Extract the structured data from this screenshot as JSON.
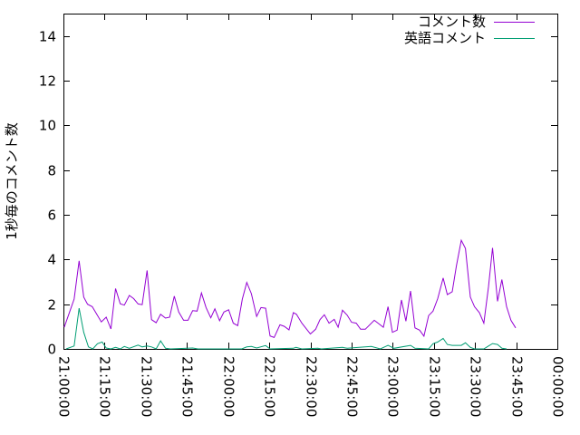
{
  "chart_data": {
    "type": "line",
    "title": "",
    "xlabel": "",
    "ylabel": "1秒毎のコメント数",
    "xlim": [
      "21:00:00",
      "00:00:00"
    ],
    "ylim": [
      0,
      15
    ],
    "x_ticks": [
      "21:00:00",
      "21:15:00",
      "21:30:00",
      "21:45:00",
      "22:00:00",
      "22:15:00",
      "22:30:00",
      "22:45:00",
      "23:00:00",
      "23:15:00",
      "23:30:00",
      "23:45:00",
      "00:00:00"
    ],
    "y_ticks": [
      "0",
      "2",
      "4",
      "6",
      "8",
      "10",
      "12",
      "14"
    ],
    "grid": false,
    "legend_position": "top-right",
    "series": [
      {
        "name": "コメント数",
        "color": "#9400d3",
        "points": [
          [
            "21:00:18",
            0.97
          ],
          [
            "21:03:54",
            2.23
          ],
          [
            "21:05:42",
            3.94
          ],
          [
            "21:07:24",
            2.32
          ],
          [
            "21:08:48",
            2.0
          ],
          [
            "21:10:30",
            1.89
          ],
          [
            "21:13:48",
            1.21
          ],
          [
            "21:15:36",
            1.42
          ],
          [
            "21:17:18",
            0.89
          ],
          [
            "21:19:00",
            2.7
          ],
          [
            "21:20:42",
            2.02
          ],
          [
            "21:22:12",
            1.96
          ],
          [
            "21:24:00",
            2.39
          ],
          [
            "21:25:36",
            2.25
          ],
          [
            "21:27:12",
            2.01
          ],
          [
            "21:28:42",
            1.98
          ],
          [
            "21:30:30",
            3.51
          ],
          [
            "21:32:06",
            1.31
          ],
          [
            "21:33:48",
            1.17
          ],
          [
            "21:35:24",
            1.55
          ],
          [
            "21:37:12",
            1.38
          ],
          [
            "21:38:42",
            1.42
          ],
          [
            "21:40:24",
            2.36
          ],
          [
            "21:42:00",
            1.65
          ],
          [
            "21:43:48",
            1.28
          ],
          [
            "21:45:24",
            1.28
          ],
          [
            "21:47:06",
            1.71
          ],
          [
            "21:48:42",
            1.69
          ],
          [
            "21:50:18",
            2.5
          ],
          [
            "21:52:00",
            1.85
          ],
          [
            "21:53:42",
            1.39
          ],
          [
            "21:55:12",
            1.79
          ],
          [
            "21:56:54",
            1.26
          ],
          [
            "21:58:30",
            1.65
          ],
          [
            "22:00:12",
            1.75
          ],
          [
            "22:01:54",
            1.15
          ],
          [
            "22:03:30",
            1.04
          ],
          [
            "22:05:12",
            2.23
          ],
          [
            "22:06:48",
            2.97
          ],
          [
            "22:08:30",
            2.47
          ],
          [
            "22:10:24",
            1.45
          ],
          [
            "22:12:00",
            1.85
          ],
          [
            "22:13:42",
            1.82
          ],
          [
            "22:15:18",
            0.58
          ],
          [
            "22:16:48",
            0.51
          ],
          [
            "22:18:54",
            1.08
          ],
          [
            "22:20:30",
            1.01
          ],
          [
            "22:22:12",
            0.85
          ],
          [
            "22:23:48",
            1.62
          ],
          [
            "22:24:54",
            1.55
          ],
          [
            "22:26:54",
            1.15
          ],
          [
            "22:30:00",
            0.67
          ],
          [
            "22:31:54",
            0.88
          ],
          [
            "22:33:30",
            1.31
          ],
          [
            "22:35:06",
            1.53
          ],
          [
            "22:36:48",
            1.15
          ],
          [
            "22:38:42",
            1.32
          ],
          [
            "22:40:06",
            0.97
          ],
          [
            "22:41:42",
            1.73
          ],
          [
            "22:43:24",
            1.51
          ],
          [
            "22:45:00",
            1.19
          ],
          [
            "22:46:42",
            1.15
          ],
          [
            "22:48:18",
            0.88
          ],
          [
            "22:50:00",
            0.88
          ],
          [
            "22:53:18",
            1.28
          ],
          [
            "22:56:36",
            0.97
          ],
          [
            "22:58:18",
            1.89
          ],
          [
            "22:59:54",
            0.74
          ],
          [
            "23:01:36",
            0.84
          ],
          [
            "23:03:12",
            2.19
          ],
          [
            "23:04:48",
            1.24
          ],
          [
            "23:06:30",
            2.59
          ],
          [
            "23:08:06",
            0.94
          ],
          [
            "23:09:48",
            0.84
          ],
          [
            "23:11:24",
            0.57
          ],
          [
            "23:13:06",
            1.49
          ],
          [
            "23:14:42",
            1.69
          ],
          [
            "23:16:24",
            2.25
          ],
          [
            "23:18:24",
            3.17
          ],
          [
            "23:19:54",
            2.43
          ],
          [
            "23:21:42",
            2.56
          ],
          [
            "23:23:12",
            3.71
          ],
          [
            "23:25:00",
            4.86
          ],
          [
            "23:26:30",
            4.49
          ],
          [
            "23:28:18",
            2.32
          ],
          [
            "23:29:48",
            1.89
          ],
          [
            "23:31:36",
            1.62
          ],
          [
            "23:33:12",
            1.15
          ],
          [
            "23:34:54",
            2.77
          ],
          [
            "23:36:24",
            4.52
          ],
          [
            "23:38:12",
            2.13
          ],
          [
            "23:39:48",
            3.1
          ],
          [
            "23:41:30",
            1.89
          ],
          [
            "23:43:06",
            1.28
          ],
          [
            "23:44:48",
            0.94
          ]
        ]
      },
      {
        "name": "英語コメント",
        "color": "#009e73",
        "points": [
          [
            "21:01:00",
            0
          ],
          [
            "21:03:54",
            0.13
          ],
          [
            "21:05:42",
            1.82
          ],
          [
            "21:07:24",
            0.74
          ],
          [
            "21:09:06",
            0.09
          ],
          [
            "21:10:42",
            0
          ],
          [
            "21:12:24",
            0.23
          ],
          [
            "21:14:06",
            0.31
          ],
          [
            "21:15:36",
            0.04
          ],
          [
            "21:17:18",
            0
          ],
          [
            "21:19:00",
            0.07
          ],
          [
            "21:20:42",
            0
          ],
          [
            "21:22:12",
            0.11
          ],
          [
            "21:24:00",
            0.03
          ],
          [
            "21:27:12",
            0.17
          ],
          [
            "21:28:42",
            0.09
          ],
          [
            "21:30:30",
            0.13
          ],
          [
            "21:32:06",
            0.09
          ],
          [
            "21:33:48",
            0
          ],
          [
            "21:35:24",
            0.36
          ],
          [
            "21:37:12",
            0.03
          ],
          [
            "21:39:00",
            0
          ],
          [
            "21:47:06",
            0.04
          ],
          [
            "21:49:00",
            0
          ],
          [
            "22:05:00",
            0
          ],
          [
            "22:06:48",
            0.09
          ],
          [
            "22:08:30",
            0.11
          ],
          [
            "22:10:24",
            0.04
          ],
          [
            "22:13:42",
            0.15
          ],
          [
            "22:15:18",
            0
          ],
          [
            "22:23:48",
            0.03
          ],
          [
            "22:24:42",
            0.07
          ],
          [
            "22:26:54",
            0
          ],
          [
            "22:32:42",
            0.03
          ],
          [
            "22:34:00",
            0
          ],
          [
            "22:41:42",
            0.07
          ],
          [
            "22:43:24",
            0.03
          ],
          [
            "22:52:12",
            0.11
          ],
          [
            "22:55:30",
            0
          ],
          [
            "22:58:18",
            0.16
          ],
          [
            "23:00:30",
            0.03
          ],
          [
            "23:06:30",
            0.16
          ],
          [
            "23:08:06",
            0.03
          ],
          [
            "23:13:06",
            0
          ],
          [
            "23:14:42",
            0.23
          ],
          [
            "23:16:24",
            0.31
          ],
          [
            "23:18:24",
            0.47
          ],
          [
            "23:19:54",
            0.2
          ],
          [
            "23:21:42",
            0.16
          ],
          [
            "23:25:00",
            0.16
          ],
          [
            "23:26:30",
            0.27
          ],
          [
            "23:28:18",
            0.07
          ],
          [
            "23:29:48",
            0
          ],
          [
            "23:33:12",
            0
          ],
          [
            "23:34:54",
            0.13
          ],
          [
            "23:36:24",
            0.24
          ],
          [
            "23:38:12",
            0.2
          ],
          [
            "23:39:48",
            0.03
          ],
          [
            "23:41:30",
            0
          ]
        ]
      }
    ]
  }
}
